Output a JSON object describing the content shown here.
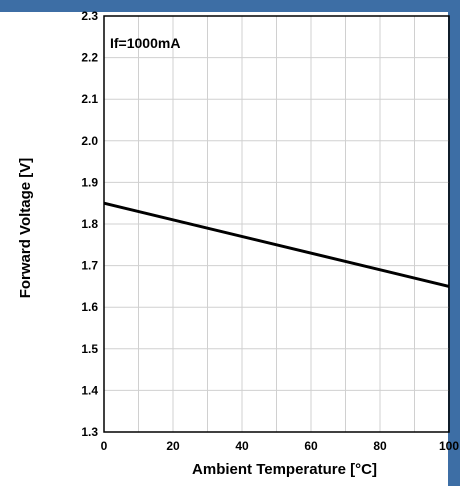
{
  "chart_data": {
    "type": "line",
    "annotation": "If=1000mA",
    "xlabel": "Ambient Temperature [°C]",
    "ylabel": "Forward Voltage [V]",
    "xlim": [
      0,
      100
    ],
    "ylim": [
      1.3,
      2.3
    ],
    "x_ticks": [
      "0",
      "20",
      "40",
      "60",
      "80",
      "100"
    ],
    "y_ticks": [
      "1.3",
      "1.4",
      "1.5",
      "1.6",
      "1.7",
      "1.8",
      "1.9",
      "2.0",
      "2.1",
      "2.2",
      "2.3"
    ],
    "grid": true,
    "series": [
      {
        "x": [
          0,
          100
        ],
        "y": [
          1.85,
          1.65
        ]
      }
    ],
    "colors": {
      "line": "#000000",
      "grid": "#d0d0d0",
      "frame": "#000000",
      "band": "#3d6ea5"
    }
  }
}
